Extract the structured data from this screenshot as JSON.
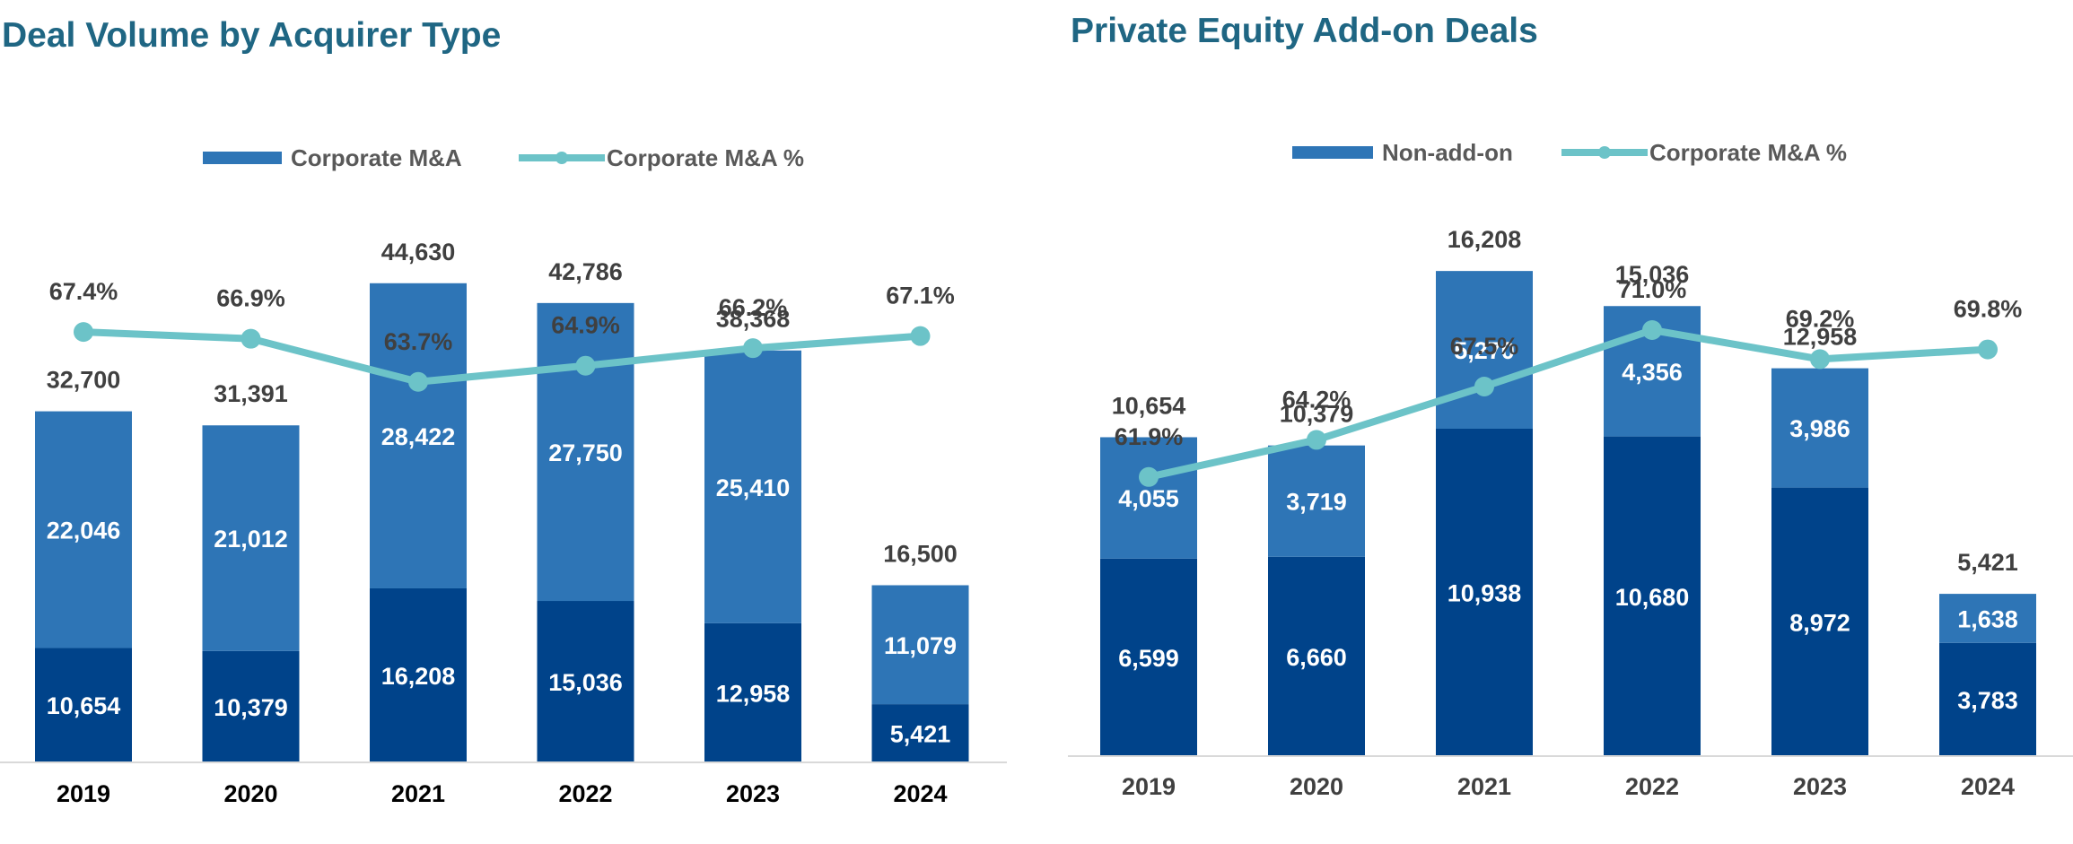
{
  "chart_data": [
    {
      "type": "bar",
      "title": "Deal Volume by Acquirer Type",
      "stacked": true,
      "categories": [
        "2019",
        "2020",
        "2021",
        "2022",
        "2023",
        "2024"
      ],
      "series": [
        {
          "name": "",
          "values": [
            10654,
            10379,
            16208,
            15036,
            12958,
            5421
          ],
          "color": "#00438a"
        },
        {
          "name": "Corporate M&A",
          "values": [
            22046,
            21012,
            28422,
            27750,
            25410,
            11079
          ],
          "color": "#2e75b6"
        }
      ],
      "totals": [
        32700,
        31391,
        44630,
        42786,
        38368,
        16500
      ],
      "total_labels": [
        "32,700",
        "31,391",
        "44,630",
        "42,786",
        "38,368",
        "16,500"
      ],
      "segment_labels": [
        [
          "10,654",
          "10,379",
          "16,208",
          "15,036",
          "12,958",
          "5,421"
        ],
        [
          "22,046",
          "21,012",
          "28,422",
          "27,750",
          "25,410",
          "11,079"
        ]
      ],
      "line_series": {
        "name": "Corporate M&A %",
        "values": [
          67.4,
          66.9,
          63.7,
          64.9,
          66.2,
          67.1
        ],
        "labels": [
          "67.4%",
          "66.9%",
          "63.7%",
          "64.9%",
          "66.2%",
          "67.1%"
        ],
        "color": "#6cc3c8"
      },
      "legend": [
        {
          "label": "Corporate M&A",
          "kind": "bar",
          "color": "#2e75b6"
        },
        {
          "label": "Corporate M&A %",
          "kind": "line",
          "color": "#6cc3c8"
        }
      ],
      "legend_position": "top",
      "grid": false,
      "xlabel": "",
      "ylabel": "",
      "ylim": [
        0,
        54000
      ],
      "line_ylim": [
        40,
        72
      ],
      "category_label_color": "#000000"
    },
    {
      "type": "bar",
      "title": "Private Equity Add-on Deals",
      "stacked": true,
      "categories": [
        "2019",
        "2020",
        "2021",
        "2022",
        "2023",
        "2024"
      ],
      "series": [
        {
          "name": "Non-add-on",
          "values": [
            6599,
            6660,
            10938,
            10680,
            8972,
            3783
          ],
          "color": "#00438a"
        },
        {
          "name": "",
          "values": [
            4055,
            3719,
            5270,
            4356,
            3986,
            1638
          ],
          "color": "#2e75b6"
        }
      ],
      "totals": [
        10654,
        10379,
        16208,
        15036,
        12958,
        5421
      ],
      "total_labels": [
        "10,654",
        "10,379",
        "16,208",
        "15,036",
        "12,958",
        "5,421"
      ],
      "segment_labels": [
        [
          "6,599",
          "6,660",
          "10,938",
          "10,680",
          "8,972",
          "3,783"
        ],
        [
          "4,055",
          "3,719",
          "5,270",
          "4,356",
          "3,986",
          "1,638"
        ]
      ],
      "line_series": {
        "name": "Corporate M&A %",
        "values": [
          61.9,
          64.2,
          67.5,
          71.0,
          69.2,
          69.8
        ],
        "labels": [
          "61.9%",
          "64.2%",
          "67.5%",
          "71.0%",
          "69.2%",
          "69.8%"
        ],
        "color": "#6cc3c8"
      },
      "legend": [
        {
          "label": "Non-add-on",
          "kind": "bar",
          "color": "#2e75b6"
        },
        {
          "label": "Corporate M&A %",
          "kind": "line",
          "color": "#6cc3c8"
        }
      ],
      "legend_position": "top",
      "grid": false,
      "xlabel": "",
      "ylabel": "",
      "ylim": [
        0,
        19000
      ],
      "line_ylim": [
        40,
        80
      ],
      "category_label_color": "#404040"
    }
  ]
}
